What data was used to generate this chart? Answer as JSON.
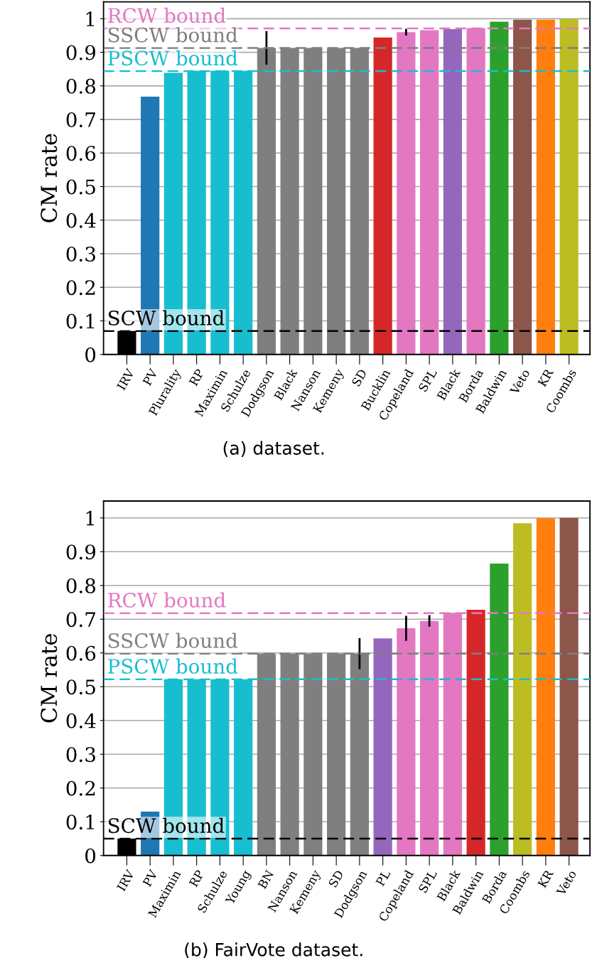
{
  "chart_data": [
    {
      "type": "bar",
      "title": "(a) dataset.",
      "ylabel": "CM rate",
      "categories": [
        "IRV",
        "PV",
        "Plurality",
        "RP",
        "Maximin",
        "Schulze",
        "Dodgson",
        "Black",
        "Nanson",
        "Kemeny",
        "SD",
        "Bucklin",
        "Copeland",
        "SPL",
        "Black",
        "Borda",
        "Baldwin",
        "Veto",
        "KR",
        "Coombs"
      ],
      "values": [
        0.07,
        0.768,
        0.839,
        0.845,
        0.845,
        0.845,
        0.913,
        0.913,
        0.913,
        0.913,
        0.913,
        0.944,
        0.96,
        0.966,
        0.969,
        0.972,
        0.991,
        0.997,
        0.997,
        0.999
      ],
      "errors": [
        null,
        null,
        null,
        null,
        null,
        null,
        0.05,
        null,
        null,
        null,
        null,
        null,
        0.01,
        null,
        null,
        null,
        null,
        null,
        null,
        null
      ],
      "colors": [
        "#000000",
        "#1f77b4",
        "#17becf",
        "#17becf",
        "#17becf",
        "#17becf",
        "#7f7f7f",
        "#7f7f7f",
        "#7f7f7f",
        "#7f7f7f",
        "#7f7f7f",
        "#d62728",
        "#e377c2",
        "#e377c2",
        "#9467bd",
        "#e377c2",
        "#2ca02c",
        "#8c564b",
        "#ff7f0e",
        "#bcbd22"
      ],
      "ylim": [
        0,
        1.05
      ],
      "yticks": [
        0,
        0.1,
        0.2,
        0.3,
        0.4,
        0.5,
        0.6,
        0.7,
        0.8,
        0.9,
        1
      ],
      "grid": "y",
      "ref_lines": [
        {
          "axis": "y",
          "value": 0.971,
          "label": "RCW bound",
          "color": "#e377c2",
          "line_style": "dashed"
        },
        {
          "axis": "y",
          "value": 0.913,
          "label": "SSCW bound",
          "color": "#7f7f7f",
          "line_style": "dashed"
        },
        {
          "axis": "y",
          "value": 0.844,
          "label": "PSCW bound",
          "color": "#17becf",
          "line_style": "dashed"
        },
        {
          "axis": "y",
          "value": 0.07,
          "label": "SCW bound",
          "color": "#000000",
          "line_style": "dashed"
        }
      ]
    },
    {
      "type": "bar",
      "title": "(b) FairVote dataset.",
      "ylabel": "CM rate",
      "categories": [
        "IRV",
        "PV",
        "Maximin",
        "RP",
        "Schulze",
        "Young",
        "BN",
        "Nanson",
        "Kemeny",
        "SD",
        "Dodgson",
        "PL",
        "Copeland",
        "SPL",
        "Black",
        "Baldwin",
        "Borda",
        "Coombs",
        "KR",
        "Veto"
      ],
      "values": [
        0.05,
        0.13,
        0.522,
        0.522,
        0.522,
        0.522,
        0.598,
        0.598,
        0.598,
        0.598,
        0.598,
        0.643,
        0.673,
        0.695,
        0.719,
        0.728,
        0.865,
        0.984,
        0.999,
        1.0
      ],
      "errors": [
        null,
        null,
        null,
        null,
        null,
        null,
        null,
        null,
        null,
        null,
        0.046,
        null,
        0.037,
        0.017,
        null,
        null,
        null,
        null,
        null,
        null
      ],
      "colors": [
        "#000000",
        "#1f77b4",
        "#17becf",
        "#17becf",
        "#17becf",
        "#17becf",
        "#7f7f7f",
        "#7f7f7f",
        "#7f7f7f",
        "#7f7f7f",
        "#7f7f7f",
        "#9467bd",
        "#e377c2",
        "#e377c2",
        "#e377c2",
        "#d62728",
        "#2ca02c",
        "#bcbd22",
        "#ff7f0e",
        "#8c564b"
      ],
      "ylim": [
        0,
        1.05
      ],
      "yticks": [
        0,
        0.1,
        0.2,
        0.3,
        0.4,
        0.5,
        0.6,
        0.7,
        0.8,
        0.9,
        1
      ],
      "grid": "y",
      "ref_lines": [
        {
          "axis": "y",
          "value": 0.718,
          "label": "RCW bound",
          "color": "#e377c2",
          "line_style": "dashed"
        },
        {
          "axis": "y",
          "value": 0.598,
          "label": "SSCW bound",
          "color": "#7f7f7f",
          "line_style": "dashed"
        },
        {
          "axis": "y",
          "value": 0.522,
          "label": "PSCW bound",
          "color": "#17becf",
          "line_style": "dashed"
        },
        {
          "axis": "y",
          "value": 0.05,
          "label": "SCW bound",
          "color": "#000000",
          "line_style": "dashed"
        }
      ]
    }
  ]
}
